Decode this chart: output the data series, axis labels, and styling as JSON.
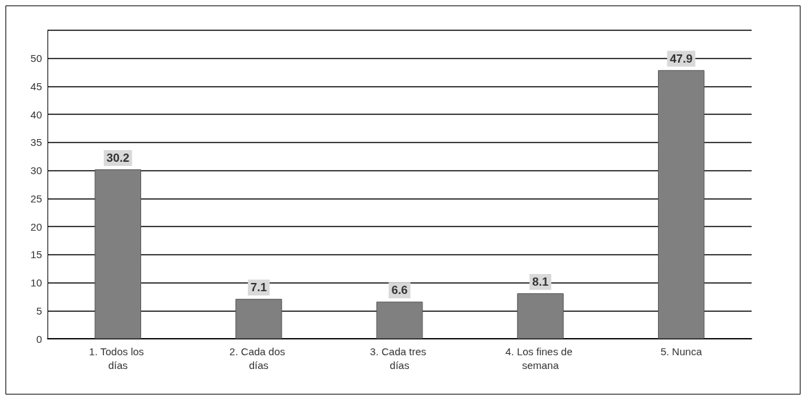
{
  "chart_data": {
    "type": "bar",
    "categories": [
      "1. Todos los días",
      "2. Cada dos días",
      "3. Cada tres días",
      "4. Los fines de semana",
      "5. Nunca"
    ],
    "values": [
      30.2,
      7.1,
      6.6,
      8.1,
      47.9
    ],
    "color": "#808080",
    "ylim": [
      0,
      55
    ],
    "yticks": [
      0,
      5,
      10,
      15,
      20,
      25,
      30,
      35,
      40,
      45,
      50,
      {
        "value": 55,
        "label": null
      }
    ],
    "grid": "y",
    "data_labels": true
  }
}
